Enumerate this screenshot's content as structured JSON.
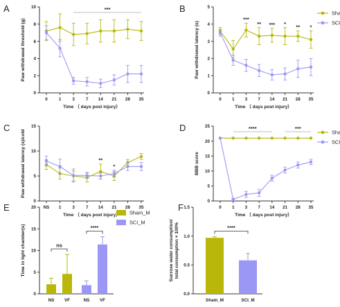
{
  "colors": {
    "sham": "#b8b70a",
    "sci": "#9b98f5",
    "axis": "#333333",
    "sig": "#bfbfbf"
  },
  "chart_data": [
    {
      "panel": "A",
      "type": "line",
      "ylabel": "Paw withdrawal threshold (g)",
      "xlabel": "Time （ days post injury）",
      "x": [
        "0",
        "1",
        "3",
        "7",
        "14",
        "21",
        "28",
        "35"
      ],
      "ylim": [
        0,
        10
      ],
      "yticks": [
        0,
        2,
        4,
        6,
        8,
        10
      ],
      "series": [
        {
          "name": "Sham_M",
          "values": [
            7.2,
            7.6,
            6.8,
            6.9,
            7.2,
            7.2,
            7.4,
            7.2
          ],
          "err": [
            1.1,
            1.6,
            1.3,
            1.2,
            1.3,
            1.3,
            1.1,
            1.1
          ]
        },
        {
          "name": "SCI_M",
          "values": [
            7.0,
            5.2,
            1.4,
            1.3,
            1.1,
            1.5,
            2.2,
            2.2
          ],
          "err": [
            0.8,
            1.0,
            0.4,
            0.5,
            0.5,
            0.6,
            1.0,
            1.0
          ]
        }
      ],
      "significance": [
        {
          "from": "3",
          "to": "35",
          "label": "***"
        }
      ]
    },
    {
      "panel": "B",
      "type": "line",
      "ylabel": "Paw withdrawal latency (s)",
      "xlabel": "Time （ days post injury）",
      "x": [
        "0",
        "1",
        "3",
        "7",
        "14",
        "21",
        "28",
        "35"
      ],
      "ylim": [
        0,
        5
      ],
      "yticks": [
        0,
        1,
        2,
        3,
        4,
        5
      ],
      "series": [
        {
          "name": "Sham_M",
          "values": [
            3.6,
            2.55,
            3.65,
            3.3,
            3.35,
            3.3,
            3.3,
            3.1
          ],
          "err": [
            0.2,
            0.5,
            0.4,
            0.5,
            0.4,
            0.5,
            0.3,
            0.5
          ]
        },
        {
          "name": "SCI_M",
          "values": [
            3.5,
            1.9,
            1.6,
            1.3,
            1.05,
            1.1,
            1.4,
            1.5
          ],
          "err": [
            0.2,
            0.3,
            0.35,
            0.35,
            0.3,
            0.35,
            0.5,
            0.5
          ]
        }
      ],
      "point_labels": [
        {
          "x": "3",
          "label": "***"
        },
        {
          "x": "7",
          "label": "**"
        },
        {
          "x": "14",
          "label": "***"
        },
        {
          "x": "21",
          "label": "*"
        },
        {
          "x": "28",
          "label": "**"
        },
        {
          "x": "35",
          "label": "*"
        }
      ],
      "legend": [
        "Sham_M",
        "SCI_M"
      ]
    },
    {
      "panel": "C",
      "type": "line",
      "ylabel": "Paw withdrawal latency (s)/cold",
      "xlabel": "Time （ days post injury）",
      "x": [
        "NS",
        "1",
        "3",
        "7",
        "14",
        "21",
        "28",
        "35"
      ],
      "ylim": [
        0,
        15
      ],
      "yticks": [
        0,
        5,
        10,
        15
      ],
      "series": [
        {
          "name": "Sham_M",
          "values": [
            7.3,
            5.5,
            5.0,
            4.7,
            5.9,
            5.0,
            7.7,
            8.9
          ],
          "err": [
            1.0,
            1.1,
            1.0,
            0.9,
            1.5,
            0.9,
            0.6,
            0.6
          ]
        },
        {
          "name": "SCI_M",
          "values": [
            8.0,
            6.9,
            5.1,
            5.1,
            5.0,
            5.5,
            6.9,
            6.9
          ],
          "err": [
            1.0,
            1.5,
            1.3,
            0.6,
            0.6,
            0.7,
            0.8,
            0.8
          ]
        }
      ],
      "point_labels": [
        {
          "x": "14",
          "label": "**"
        },
        {
          "x": "21",
          "label": "*"
        }
      ]
    },
    {
      "panel": "D",
      "type": "line",
      "ylabel": "BBB score",
      "xlabel": "Time （ days post injury）",
      "x": [
        "0",
        "1",
        "3",
        "7",
        "14",
        "21",
        "28",
        "35"
      ],
      "ylim": [
        0,
        25
      ],
      "yticks": [
        0,
        5,
        10,
        15,
        20,
        25
      ],
      "series": [
        {
          "name": "Sham_M",
          "values": [
            21,
            21,
            21,
            21,
            21,
            21,
            21,
            21
          ],
          "err": [
            0,
            0,
            0,
            0,
            0,
            0,
            0,
            0
          ]
        },
        {
          "name": "SCI_M",
          "values": [
            21,
            0.5,
            2.2,
            2.7,
            7.6,
            10.3,
            12.0,
            13.0
          ],
          "err": [
            0,
            0.4,
            1.0,
            1.2,
            1.0,
            1.0,
            1.0,
            0.9
          ]
        }
      ],
      "significance": [
        {
          "from": "1",
          "to": "14",
          "label": "****"
        },
        {
          "from": "21",
          "to": "35",
          "label": "***"
        }
      ],
      "legend": [
        "Sham_M",
        "SCI_M"
      ]
    },
    {
      "panel": "E",
      "type": "bar",
      "ylabel": "Time in light chamber(s)",
      "categories": [
        "NS",
        "VF",
        "NS",
        "VF"
      ],
      "ylim": [
        0,
        20
      ],
      "yticks": [
        0,
        5,
        10,
        15,
        20
      ],
      "values": [
        2.2,
        4.6,
        2.0,
        11.4
      ],
      "err": [
        1.4,
        4.5,
        1.0,
        1.8
      ],
      "bar_series": [
        "Sham_M",
        "Sham_M",
        "SCI_M",
        "SCI_M"
      ],
      "significance": [
        {
          "from": 0,
          "to": 1,
          "label": "ns"
        },
        {
          "from": 2,
          "to": 3,
          "label": "****"
        }
      ],
      "legend": [
        "Sham_M",
        "SCI_M"
      ]
    },
    {
      "panel": "F",
      "type": "bar",
      "ylabel": [
        "Sucrose water consumption/",
        "total consumption × 100%"
      ],
      "categories": [
        "Sham_M",
        "SCI_M"
      ],
      "ylim": [
        0,
        1.5
      ],
      "yticks": [
        0.0,
        0.5,
        1.0,
        1.5
      ],
      "values": [
        0.97,
        0.58
      ],
      "err": [
        0.02,
        0.12
      ],
      "bar_series": [
        "Sham_M",
        "SCI_M"
      ],
      "significance": [
        {
          "from": 0,
          "to": 1,
          "label": "****"
        }
      ]
    }
  ]
}
